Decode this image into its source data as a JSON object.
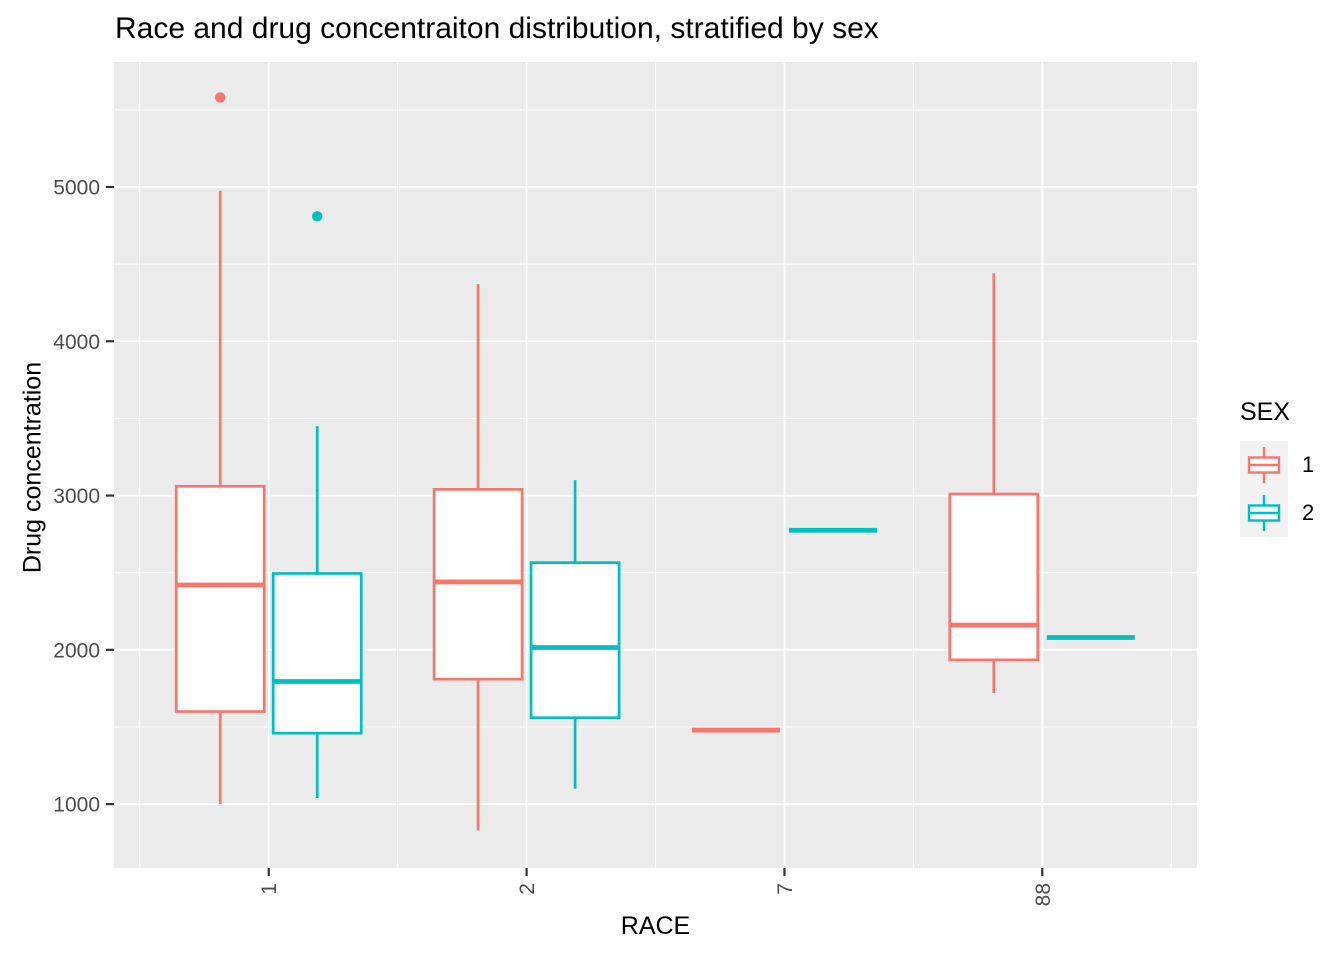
{
  "chart_data": {
    "type": "boxplot",
    "title": "Race and drug concentraiton distribution, stratified by sex",
    "xlabel": "RACE",
    "ylabel": "Drug concentration",
    "categories": [
      "1",
      "2",
      "7",
      "88"
    ],
    "y_ticks": [
      1000,
      2000,
      3000,
      4000,
      5000
    ],
    "y_minor_ticks": [
      1500,
      2500,
      3500,
      4500,
      5500
    ],
    "ylim": [
      586,
      5810
    ],
    "grid": true,
    "legend": {
      "title": "SEX",
      "position": "right",
      "entries": [
        {
          "label": "1",
          "color": "#F8766D"
        },
        {
          "label": "2",
          "color": "#00BFC4"
        }
      ]
    },
    "style": {
      "panel_background": "#EBEBEB",
      "gridline_color": "#FFFFFF",
      "tick_label_color": "#4D4D4D",
      "tick_mark_color": "#333333",
      "box_fill": "#FFFFFF",
      "legend_key_background": "#F2F2F2"
    },
    "series": [
      {
        "name": "1",
        "color": "#F8766D",
        "boxes": [
          {
            "category": "1",
            "min": 1000,
            "q1": 1600,
            "median": 2420,
            "q3": 3060,
            "max": 4975,
            "outliers": [
              5580
            ]
          },
          {
            "category": "2",
            "min": 830,
            "q1": 1810,
            "median": 2440,
            "q3": 3040,
            "max": 4370,
            "outliers": []
          },
          {
            "category": "7",
            "min": 1480,
            "q1": 1480,
            "median": 1480,
            "q3": 1480,
            "max": 1480,
            "outliers": []
          },
          {
            "category": "88",
            "min": 1720,
            "q1": 1935,
            "median": 2160,
            "q3": 3010,
            "max": 4440,
            "outliers": []
          }
        ]
      },
      {
        "name": "2",
        "color": "#00BFC4",
        "boxes": [
          {
            "category": "1",
            "min": 1040,
            "q1": 1460,
            "median": 1795,
            "q3": 2495,
            "max": 3450,
            "outliers": [
              4810
            ]
          },
          {
            "category": "2",
            "min": 1100,
            "q1": 1560,
            "median": 2015,
            "q3": 2565,
            "max": 3100,
            "outliers": []
          },
          {
            "category": "7",
            "min": 2775,
            "q1": 2775,
            "median": 2775,
            "q3": 2775,
            "max": 2775,
            "outliers": []
          },
          {
            "category": "88",
            "min": 2080,
            "q1": 2080,
            "median": 2080,
            "q3": 2080,
            "max": 2080,
            "outliers": []
          }
        ]
      }
    ]
  }
}
